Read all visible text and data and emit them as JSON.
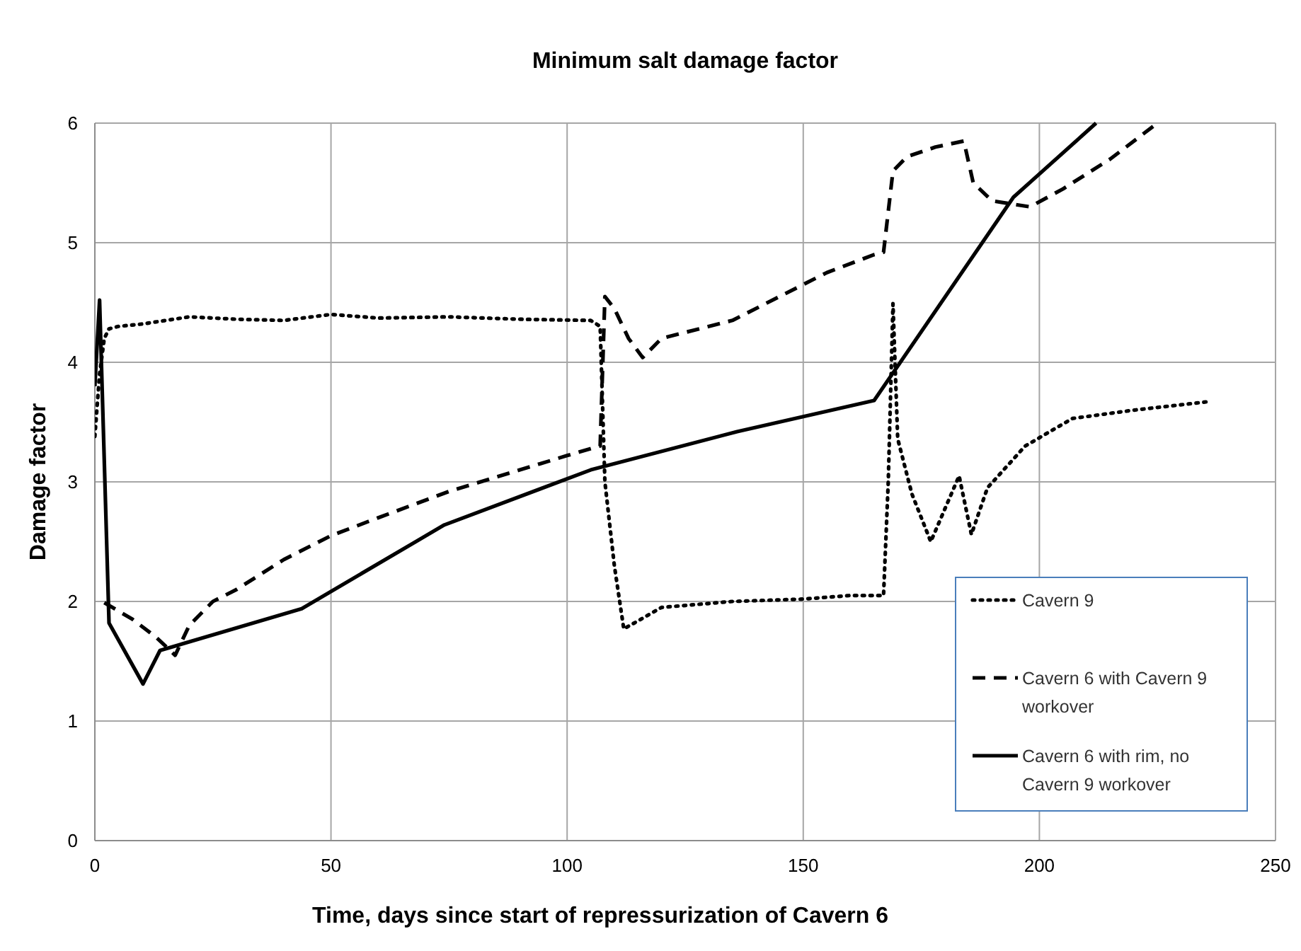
{
  "chart_data": {
    "type": "line",
    "title": "Minimum  salt damage factor",
    "xlabel": "Time, days since start of repressurization of Cavern 6",
    "ylabel": "Damage factor",
    "xlim": [
      0,
      250
    ],
    "xticks": [
      0,
      50,
      100,
      150,
      200,
      250
    ],
    "ylim": [
      0,
      6
    ],
    "yticks": [
      0,
      1,
      2,
      3,
      4,
      5,
      6
    ],
    "grid": true,
    "legend": "bottom right",
    "marker": "none",
    "series": [
      {
        "name": "Cavern 9",
        "color": "#000000",
        "line_style": "dotted",
        "x": [
          0,
          1,
          2,
          3,
          5,
          10,
          15,
          20,
          30,
          40,
          50,
          60,
          75,
          90,
          105,
          107,
          108,
          110,
          112,
          120,
          135,
          150,
          160,
          167,
          168,
          169,
          170,
          173,
          177,
          183,
          185.6,
          189,
          197,
          207,
          220,
          235.6
        ],
        "values": [
          3.38,
          3.9,
          4.2,
          4.28,
          4.3,
          4.32,
          4.35,
          4.38,
          4.36,
          4.35,
          4.4,
          4.37,
          4.38,
          4.36,
          4.35,
          4.3,
          3.0,
          2.3,
          1.77,
          1.95,
          2.0,
          2.02,
          2.05,
          2.05,
          3.0,
          4.49,
          3.36,
          2.9,
          2.5,
          3.05,
          2.56,
          2.95,
          3.3,
          3.53,
          3.6,
          3.67
        ]
      },
      {
        "name": "Cavern 6 with Cavern 9 workover",
        "color": "#000000",
        "line_style": "dashed",
        "x": [
          2,
          8,
          13,
          17,
          20,
          25,
          30,
          40,
          50,
          60,
          75,
          90,
          100,
          107,
          108,
          110,
          113,
          116,
          120,
          125,
          135,
          145,
          155,
          165,
          167,
          169,
          172,
          178,
          184,
          186,
          190,
          198,
          205,
          215,
          225
        ],
        "values": [
          1.99,
          1.85,
          1.7,
          1.55,
          1.8,
          2.0,
          2.1,
          2.35,
          2.55,
          2.7,
          2.92,
          3.1,
          3.22,
          3.3,
          4.55,
          4.45,
          4.2,
          4.04,
          4.2,
          4.25,
          4.35,
          4.55,
          4.75,
          4.9,
          4.92,
          5.6,
          5.72,
          5.8,
          5.85,
          5.5,
          5.35,
          5.3,
          5.45,
          5.7,
          6.0
        ]
      },
      {
        "name": "Cavern 6 with rim, no Cavern 9 workover",
        "color": "#000000",
        "line_style": "solid",
        "x": [
          0,
          1,
          3,
          10.2,
          13.8,
          43.8,
          74,
          105,
          136,
          165,
          194.5,
          212
        ],
        "values": [
          3.8,
          4.52,
          1.82,
          1.31,
          1.59,
          1.94,
          2.64,
          3.1,
          3.42,
          3.68,
          5.38,
          6.0
        ]
      }
    ]
  }
}
